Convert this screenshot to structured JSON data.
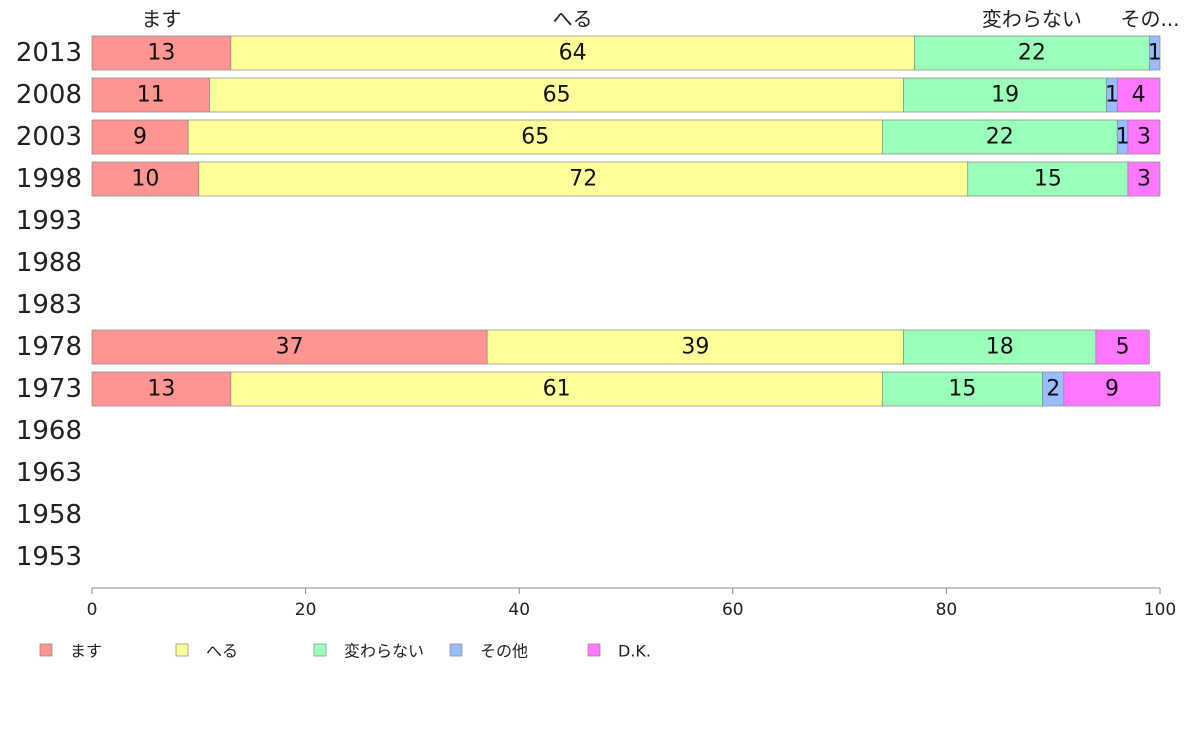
{
  "chart_data": {
    "type": "bar",
    "orientation": "horizontal",
    "stacked": true,
    "title": "",
    "xlabel": "",
    "ylabel": "",
    "xlim": [
      0,
      100
    ],
    "xticks": [
      0,
      20,
      40,
      60,
      80,
      100
    ],
    "grid": false,
    "legend_position": "bottom-left",
    "categories": [
      "2013",
      "2008",
      "2003",
      "1998",
      "1993",
      "1988",
      "1983",
      "1978",
      "1973",
      "1968",
      "1963",
      "1958",
      "1953"
    ],
    "series": [
      {
        "name": "ます",
        "color": "#ff9593",
        "values": [
          13,
          11,
          9,
          10,
          null,
          null,
          null,
          37,
          13,
          null,
          null,
          null,
          null
        ]
      },
      {
        "name": "へる",
        "color": "#ffff99",
        "values": [
          64,
          65,
          65,
          72,
          null,
          null,
          null,
          39,
          61,
          null,
          null,
          null,
          null
        ]
      },
      {
        "name": "変わらない",
        "color": "#99ffbb",
        "values": [
          22,
          19,
          22,
          15,
          null,
          null,
          null,
          18,
          15,
          null,
          null,
          null,
          null
        ]
      },
      {
        "name": "その他",
        "color": "#99bbff",
        "values": [
          1,
          1,
          1,
          0,
          null,
          null,
          null,
          0,
          2,
          null,
          null,
          null,
          null
        ]
      },
      {
        "name": "D.K.",
        "color": "#ff77ff",
        "values": [
          0,
          4,
          3,
          3,
          null,
          null,
          null,
          5,
          9,
          null,
          null,
          null,
          null
        ]
      }
    ],
    "top_labels": [
      "ます",
      "へる",
      "変わらない",
      "その..."
    ]
  }
}
